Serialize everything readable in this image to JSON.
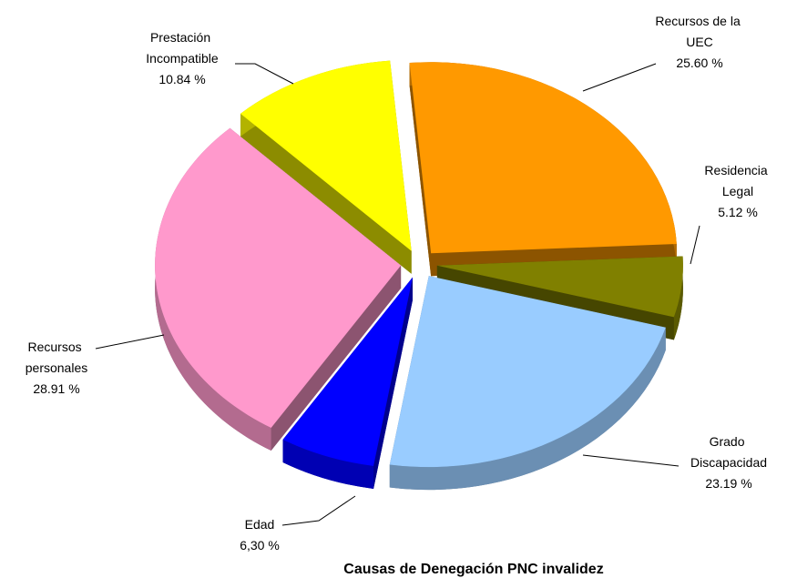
{
  "chart_data": {
    "type": "pie",
    "title": "Causas de Denegación PNC invalidez",
    "categories": [
      "Recursos de la UEC",
      "Residencia Legal",
      "Grado Discapacidad",
      "Edad",
      "Recursos personales",
      "Prestación Incompatible"
    ],
    "values": [
      25.6,
      5.12,
      23.19,
      6.3,
      28.91,
      10.84
    ],
    "value_labels": [
      "25.60 %",
      "5.12 %",
      "23.19 %",
      "6,30 %",
      "28.91 %",
      "10.84 %"
    ],
    "colors": [
      "#FF9900",
      "#808000",
      "#99CCFF",
      "#0000FF",
      "#FF99CC",
      "#FFFF00"
    ]
  }
}
